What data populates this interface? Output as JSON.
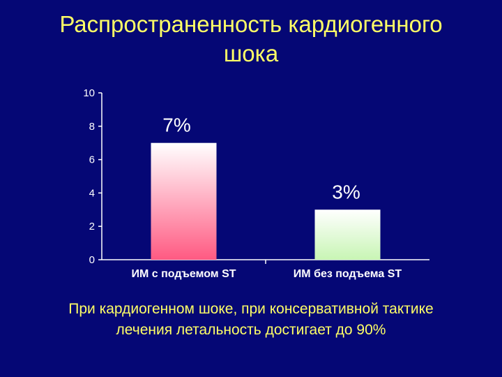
{
  "slide": {
    "title_line1": "Распространенность кардиогенного",
    "title_line2": "шока",
    "caption_line1": "При кардиогенном шоке, при консервативной тактике",
    "caption_line2": "лечения летальность достигает до 90%"
  },
  "colors": {
    "background": "#050775",
    "title": "#ffff66",
    "axis": "#ffffff",
    "bar1_top": "#ffffff",
    "bar1_bottom": "#ff5a82",
    "bar2_top": "#ffffff",
    "bar2_bottom": "#c8f5b4"
  },
  "chart_data": {
    "type": "bar",
    "categories": [
      "ИМ с подъемом ST",
      "ИМ без подъема ST"
    ],
    "values": [
      7,
      3
    ],
    "data_labels": [
      "7%",
      "3%"
    ],
    "ylim": [
      0,
      10
    ],
    "yticks": [
      0,
      2,
      4,
      6,
      8,
      10
    ],
    "grid": false,
    "legend": "none"
  }
}
